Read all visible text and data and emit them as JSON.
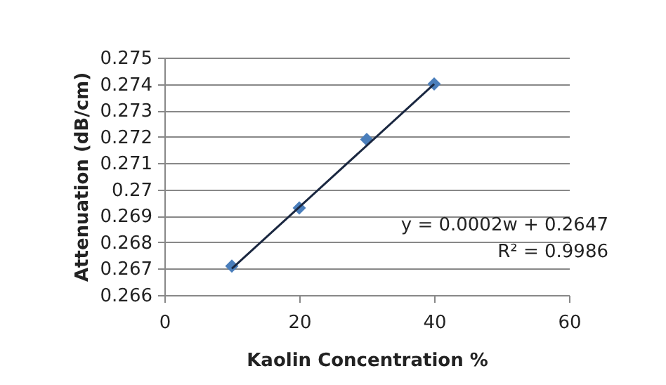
{
  "chart_data": {
    "type": "scatter",
    "xlabel": "Kaolin Concentration %",
    "ylabel": "Attenuation (dB/cm)",
    "x": [
      10,
      20,
      30,
      40
    ],
    "series": [
      {
        "type": "scatter",
        "color": "#4a7ebb",
        "marker": "diamond",
        "values": [
          0.2671,
          0.2693,
          0.2719,
          0.274
        ]
      },
      {
        "type": "line",
        "color": "#1a2740",
        "x": [
          10,
          40
        ],
        "values": [
          0.267,
          0.274
        ]
      }
    ],
    "xlim": [
      0,
      60
    ],
    "xticks": [
      0,
      20,
      40,
      60
    ],
    "ylim": [
      0.266,
      0.275
    ],
    "yticks": [
      0.266,
      0.267,
      0.268,
      0.269,
      {
        "value": 0.27,
        "label": "0.27"
      },
      0.271,
      0.272,
      0.273,
      0.274,
      0.275
    ],
    "grid": "y",
    "legend": false,
    "annotations": [
      "y = 0.0002w + 0.2647",
      "R² = 0.9986"
    ]
  }
}
